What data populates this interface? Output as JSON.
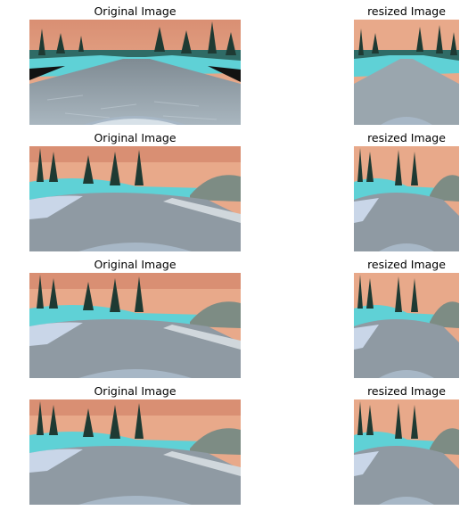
{
  "figure": {
    "rows": [
      {
        "left_title": "Original Image",
        "right_title": "resized Image",
        "scene": "straight road with trees and water, camera hood at bottom"
      },
      {
        "left_title": "Original Image",
        "right_title": "resized Image",
        "scene": "road curving right with stone barrier and hill"
      },
      {
        "left_title": "Original Image",
        "right_title": "resized Image",
        "scene": "road curving right with stone barrier and hill"
      },
      {
        "left_title": "Original Image",
        "right_title": "resized Image",
        "scene": "road curving right with stone barrier and hill"
      }
    ]
  },
  "colors": {
    "sky": "#e8a98a",
    "sky_high": "#d98f73",
    "tree": "#1e3a33",
    "water": "#5fd1d6",
    "road": "#8f9aa3",
    "road_dark": "#4f5a63",
    "hood": "#a7b7c6"
  }
}
